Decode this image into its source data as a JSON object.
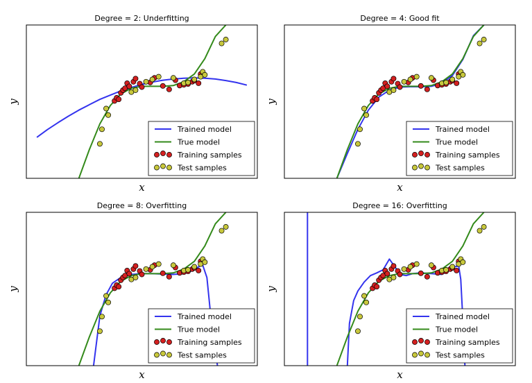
{
  "chart_data": [
    {
      "type": "line",
      "title": "Degree = 2: Underfitting",
      "xlabel": "x",
      "ylabel": "y",
      "xlim": [
        -0.05,
        1.05
      ],
      "ylim": [
        -2.0,
        2.0
      ],
      "grid": false,
      "legend_placement": "lower-right",
      "series": [
        {
          "name": "Trained model",
          "kind": "line",
          "color": "#3333ee",
          "x": [
            0.0,
            0.05,
            0.1,
            0.15,
            0.2,
            0.25,
            0.3,
            0.35,
            0.4,
            0.45,
            0.5,
            0.55,
            0.6,
            0.65,
            0.7,
            0.75,
            0.8,
            0.85,
            0.9,
            0.95,
            1.0
          ],
          "y": [
            -0.93,
            -0.73,
            -0.55,
            -0.38,
            -0.22,
            -0.08,
            0.06,
            0.17,
            0.28,
            0.37,
            0.45,
            0.51,
            0.56,
            0.59,
            0.61,
            0.62,
            0.61,
            0.59,
            0.55,
            0.5,
            0.43
          ]
        },
        {
          "name": "True model",
          "kind": "line",
          "color": "#338a1a",
          "x": [
            0.2,
            0.25,
            0.3,
            0.35,
            0.4,
            0.45,
            0.5,
            0.55,
            0.6,
            0.65,
            0.7,
            0.75,
            0.8,
            0.85,
            0.9
          ],
          "y": [
            -2.0,
            -1.25,
            -0.58,
            -0.1,
            0.2,
            0.35,
            0.4,
            0.4,
            0.4,
            0.42,
            0.52,
            0.72,
            1.12,
            1.7,
            2.0
          ]
        },
        {
          "name": "Training samples",
          "kind": "scatter",
          "color": "#d42020",
          "x": [
            0.37,
            0.38,
            0.39,
            0.4,
            0.41,
            0.42,
            0.43,
            0.44,
            0.46,
            0.47,
            0.49,
            0.5,
            0.54,
            0.56,
            0.6,
            0.63,
            0.66,
            0.68,
            0.7,
            0.72,
            0.74,
            0.75,
            0.77,
            0.78
          ],
          "y": [
            0.02,
            0.1,
            0.06,
            0.23,
            0.3,
            0.35,
            0.48,
            0.4,
            0.52,
            0.6,
            0.47,
            0.38,
            0.5,
            0.62,
            0.41,
            0.32,
            0.56,
            0.42,
            0.44,
            0.46,
            0.52,
            0.55,
            0.48,
            0.72
          ]
        },
        {
          "name": "Test samples",
          "kind": "scatter",
          "color": "#c8c83c",
          "x": [
            0.3,
            0.31,
            0.33,
            0.34,
            0.45,
            0.47,
            0.52,
            0.55,
            0.58,
            0.65,
            0.7,
            0.72,
            0.75,
            0.78,
            0.79,
            0.8,
            0.88,
            0.9
          ],
          "y": [
            -1.1,
            -0.72,
            -0.18,
            -0.35,
            0.25,
            0.3,
            0.52,
            0.58,
            0.65,
            0.62,
            0.48,
            0.5,
            0.58,
            0.65,
            0.78,
            0.7,
            1.52,
            1.62
          ]
        }
      ]
    },
    {
      "type": "line",
      "title": "Degree = 4: Good fit",
      "xlabel": "x",
      "ylabel": "y",
      "xlim": [
        -0.05,
        1.05
      ],
      "ylim": [
        -2.0,
        2.0
      ],
      "grid": false,
      "legend_placement": "lower-right",
      "series": [
        {
          "name": "Trained model",
          "kind": "line",
          "color": "#3333ee",
          "x": [
            0.2,
            0.25,
            0.3,
            0.35,
            0.4,
            0.45,
            0.5,
            0.55,
            0.6,
            0.65,
            0.7,
            0.75,
            0.8,
            0.85,
            0.9
          ],
          "y": [
            -2.0,
            -1.35,
            -0.72,
            -0.22,
            0.12,
            0.3,
            0.38,
            0.39,
            0.39,
            0.4,
            0.48,
            0.68,
            1.1,
            1.72,
            2.0
          ]
        },
        {
          "name": "True model",
          "kind": "line",
          "color": "#338a1a",
          "x": [
            0.2,
            0.25,
            0.3,
            0.35,
            0.4,
            0.45,
            0.5,
            0.55,
            0.6,
            0.65,
            0.7,
            0.75,
            0.8,
            0.85,
            0.9
          ],
          "y": [
            -2.0,
            -1.25,
            -0.58,
            -0.1,
            0.2,
            0.35,
            0.4,
            0.4,
            0.4,
            0.42,
            0.52,
            0.72,
            1.12,
            1.7,
            2.0
          ]
        },
        {
          "name": "Training samples",
          "kind": "scatter",
          "color": "#d42020",
          "x": [
            0.37,
            0.38,
            0.39,
            0.4,
            0.41,
            0.42,
            0.43,
            0.44,
            0.46,
            0.47,
            0.49,
            0.5,
            0.54,
            0.56,
            0.6,
            0.63,
            0.66,
            0.68,
            0.7,
            0.72,
            0.74,
            0.75,
            0.77,
            0.78
          ],
          "y": [
            0.02,
            0.1,
            0.06,
            0.23,
            0.3,
            0.35,
            0.48,
            0.4,
            0.52,
            0.6,
            0.47,
            0.38,
            0.5,
            0.62,
            0.41,
            0.32,
            0.56,
            0.42,
            0.44,
            0.46,
            0.52,
            0.55,
            0.48,
            0.72
          ]
        },
        {
          "name": "Test samples",
          "kind": "scatter",
          "color": "#c8c83c",
          "x": [
            0.3,
            0.31,
            0.33,
            0.34,
            0.45,
            0.47,
            0.52,
            0.55,
            0.58,
            0.65,
            0.7,
            0.72,
            0.75,
            0.78,
            0.79,
            0.8,
            0.88,
            0.9
          ],
          "y": [
            -1.1,
            -0.72,
            -0.18,
            -0.35,
            0.25,
            0.3,
            0.52,
            0.58,
            0.65,
            0.62,
            0.48,
            0.5,
            0.58,
            0.65,
            0.78,
            0.7,
            1.52,
            1.62
          ]
        }
      ]
    },
    {
      "type": "line",
      "title": "Degree = 8: Overfitting",
      "xlabel": "x",
      "ylabel": "y",
      "xlim": [
        -0.05,
        1.05
      ],
      "ylim": [
        -2.0,
        2.0
      ],
      "grid": false,
      "legend_placement": "lower-right",
      "series": [
        {
          "name": "Trained model",
          "kind": "line",
          "color": "#3333ee",
          "x": [
            0.27,
            0.3,
            0.33,
            0.36,
            0.4,
            0.45,
            0.5,
            0.55,
            0.6,
            0.65,
            0.7,
            0.74,
            0.77,
            0.79,
            0.81,
            0.83,
            0.86
          ],
          "y": [
            -2.0,
            -0.7,
            -0.15,
            0.15,
            0.3,
            0.38,
            0.4,
            0.4,
            0.39,
            0.38,
            0.4,
            0.48,
            0.58,
            0.62,
            0.3,
            -0.8,
            -2.0
          ]
        },
        {
          "name": "True model",
          "kind": "line",
          "color": "#338a1a",
          "x": [
            0.2,
            0.25,
            0.3,
            0.35,
            0.4,
            0.45,
            0.5,
            0.55,
            0.6,
            0.65,
            0.7,
            0.75,
            0.8,
            0.85,
            0.9
          ],
          "y": [
            -2.0,
            -1.25,
            -0.58,
            -0.1,
            0.2,
            0.35,
            0.4,
            0.4,
            0.4,
            0.42,
            0.52,
            0.72,
            1.12,
            1.7,
            2.0
          ]
        },
        {
          "name": "Training samples",
          "kind": "scatter",
          "color": "#d42020",
          "x": [
            0.37,
            0.38,
            0.39,
            0.4,
            0.41,
            0.42,
            0.43,
            0.44,
            0.46,
            0.47,
            0.49,
            0.5,
            0.54,
            0.56,
            0.6,
            0.63,
            0.66,
            0.68,
            0.7,
            0.72,
            0.74,
            0.75,
            0.77,
            0.78
          ],
          "y": [
            0.02,
            0.1,
            0.06,
            0.23,
            0.3,
            0.35,
            0.48,
            0.4,
            0.52,
            0.6,
            0.47,
            0.38,
            0.5,
            0.62,
            0.41,
            0.32,
            0.56,
            0.42,
            0.44,
            0.46,
            0.52,
            0.55,
            0.48,
            0.72
          ]
        },
        {
          "name": "Test samples",
          "kind": "scatter",
          "color": "#c8c83c",
          "x": [
            0.3,
            0.31,
            0.33,
            0.34,
            0.45,
            0.47,
            0.52,
            0.55,
            0.58,
            0.65,
            0.7,
            0.72,
            0.75,
            0.78,
            0.79,
            0.8,
            0.88,
            0.9
          ],
          "y": [
            -1.1,
            -0.72,
            -0.18,
            -0.35,
            0.25,
            0.3,
            0.52,
            0.58,
            0.65,
            0.62,
            0.48,
            0.5,
            0.58,
            0.65,
            0.78,
            0.7,
            1.52,
            1.62
          ]
        }
      ]
    },
    {
      "type": "line",
      "title": "Degree = 16: Overfitting",
      "xlabel": "x",
      "ylabel": "y",
      "xlim": [
        -0.05,
        1.05
      ],
      "ylim": [
        -2.0,
        2.0
      ],
      "grid": false,
      "legend_placement": "lower-right",
      "series": [
        {
          "name": "Trained model",
          "kind": "line",
          "color": "#3333ee",
          "x": [
            0.06,
            0.06
          ],
          "y": [
            2.0,
            -2.0
          ]
        },
        {
          "name": "Trained model",
          "kind": "line",
          "color": "#3333ee",
          "x": [
            0.25,
            0.26,
            0.28,
            0.3,
            0.33,
            0.36,
            0.39,
            0.42,
            0.45,
            0.48,
            0.5,
            0.53,
            0.56,
            0.6,
            0.65,
            0.7,
            0.73,
            0.76,
            0.78,
            0.79,
            0.8,
            0.81
          ],
          "y": [
            -2.0,
            -0.9,
            -0.3,
            -0.05,
            0.18,
            0.35,
            0.42,
            0.5,
            0.78,
            0.55,
            0.38,
            0.35,
            0.4,
            0.42,
            0.4,
            0.38,
            0.48,
            0.58,
            0.6,
            0.25,
            -0.8,
            -2.0
          ]
        },
        {
          "name": "True model",
          "kind": "line",
          "color": "#338a1a",
          "x": [
            0.2,
            0.25,
            0.3,
            0.35,
            0.4,
            0.45,
            0.5,
            0.55,
            0.6,
            0.65,
            0.7,
            0.75,
            0.8,
            0.85,
            0.9
          ],
          "y": [
            -2.0,
            -1.25,
            -0.58,
            -0.1,
            0.2,
            0.35,
            0.4,
            0.4,
            0.4,
            0.42,
            0.52,
            0.72,
            1.12,
            1.7,
            2.0
          ]
        },
        {
          "name": "Training samples",
          "kind": "scatter",
          "color": "#d42020",
          "x": [
            0.37,
            0.38,
            0.39,
            0.4,
            0.41,
            0.42,
            0.43,
            0.44,
            0.46,
            0.47,
            0.49,
            0.5,
            0.54,
            0.56,
            0.6,
            0.63,
            0.66,
            0.68,
            0.7,
            0.72,
            0.74,
            0.75,
            0.77,
            0.78
          ],
          "y": [
            0.02,
            0.1,
            0.06,
            0.23,
            0.3,
            0.35,
            0.48,
            0.4,
            0.52,
            0.6,
            0.47,
            0.38,
            0.5,
            0.62,
            0.41,
            0.32,
            0.56,
            0.42,
            0.44,
            0.46,
            0.52,
            0.55,
            0.48,
            0.72
          ]
        },
        {
          "name": "Test samples",
          "kind": "scatter",
          "color": "#c8c83c",
          "x": [
            0.3,
            0.31,
            0.33,
            0.34,
            0.45,
            0.47,
            0.52,
            0.55,
            0.58,
            0.65,
            0.7,
            0.72,
            0.75,
            0.78,
            0.79,
            0.8,
            0.88,
            0.9
          ],
          "y": [
            -1.1,
            -0.72,
            -0.18,
            -0.35,
            0.25,
            0.3,
            0.52,
            0.58,
            0.65,
            0.62,
            0.48,
            0.5,
            0.58,
            0.65,
            0.78,
            0.7,
            1.52,
            1.62
          ]
        }
      ]
    }
  ]
}
